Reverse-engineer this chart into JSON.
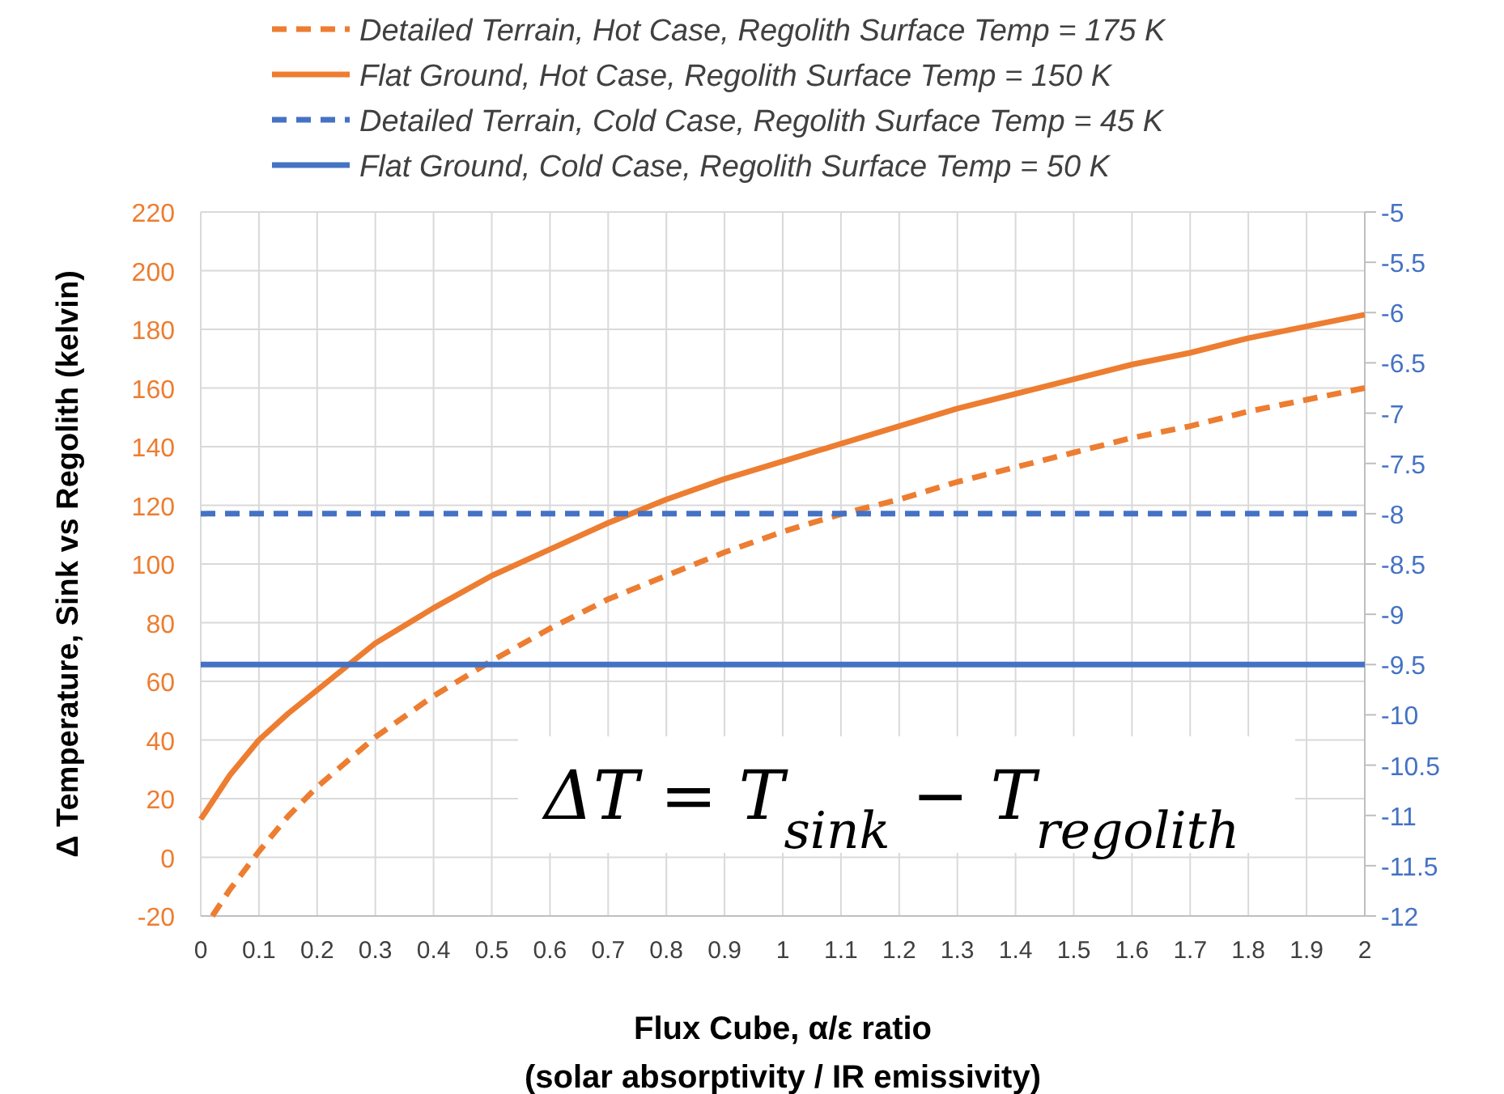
{
  "chart_data": {
    "type": "line",
    "xlabel": "Flux Cube, α/ε ratio\n(solar absorptivity / IR emissivity)",
    "ylabel": "Δ Temperature, Sink vs Regolith (kelvin)",
    "annotations": [
      "ΔT = T$_{sink}$ − T$_{regolith}$"
    ],
    "xlim": [
      0,
      2
    ],
    "xticks": [
      0,
      0.1,
      0.2,
      0.3,
      0.4,
      0.5,
      0.6,
      0.7,
      0.8,
      0.9,
      1,
      1.1,
      1.2,
      1.3,
      1.4,
      1.5,
      1.6,
      1.7,
      1.8,
      1.9,
      2
    ],
    "ylim": [
      -20,
      220
    ],
    "yticks": [
      -20,
      0,
      20,
      40,
      60,
      80,
      100,
      120,
      140,
      160,
      180,
      200,
      220
    ],
    "y2lim": [
      -12,
      -5
    ],
    "y2ticks": [
      -12,
      -11.5,
      -11,
      -10.5,
      -10,
      -9.5,
      -9,
      -8.5,
      -8,
      -7.5,
      -7,
      -6.5,
      -6,
      -5.5,
      -5
    ],
    "grid": true,
    "legend": "top",
    "series": [
      {
        "name": "Detailed Terrain, Hot Case, Regolith Surface Temp = 175 K",
        "color": "#ed7d31",
        "line_style": "dashed",
        "x": [
          0.02,
          0.05,
          0.1,
          0.15,
          0.2,
          0.3,
          0.4,
          0.5,
          0.6,
          0.7,
          0.8,
          0.9,
          1,
          1.1,
          1.2,
          1.3,
          1.4,
          1.5,
          1.6,
          1.7,
          1.8,
          1.9,
          2
        ],
        "values": [
          -20,
          -11,
          2,
          14,
          24,
          41,
          55,
          67,
          78,
          88,
          96,
          104,
          111,
          117,
          122,
          128,
          133,
          138,
          143,
          147,
          152,
          156,
          160
        ]
      },
      {
        "name": "Flat Ground, Hot Case, Regolith Surface Temp = 150 K",
        "color": "#ed7d31",
        "line_style": "solid",
        "x": [
          0,
          0.05,
          0.1,
          0.15,
          0.2,
          0.25,
          0.3,
          0.4,
          0.5,
          0.6,
          0.7,
          0.8,
          0.9,
          1,
          1.1,
          1.2,
          1.3,
          1.4,
          1.5,
          1.6,
          1.7,
          1.8,
          1.9,
          2
        ],
        "values": [
          13,
          28,
          40,
          49,
          57,
          65,
          73,
          85,
          96,
          105,
          114,
          122,
          129,
          135,
          141,
          147,
          153,
          158,
          163,
          168,
          172,
          177,
          181,
          185
        ]
      },
      {
        "name": "Detailed Terrain, Cold Case, Regolith Surface Temp = 45 K",
        "color": "#4472c4",
        "line_style": "dashed",
        "axis": "y2",
        "x": [
          0,
          2
        ],
        "values": [
          -8,
          -8
        ]
      },
      {
        "name": "Flat Ground, Cold Case, Regolith Surface Temp = 50 K",
        "color": "#4472c4",
        "line_style": "solid",
        "axis": "y2",
        "x": [
          0,
          2
        ],
        "values": [
          -9.5,
          -9.5
        ]
      }
    ]
  }
}
